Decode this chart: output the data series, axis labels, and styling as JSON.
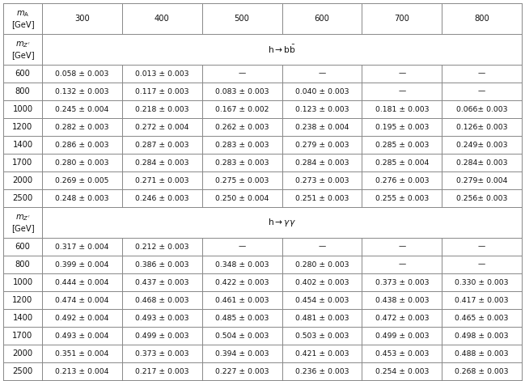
{
  "ma_cols": [
    "300",
    "400",
    "500",
    "600",
    "700",
    "800"
  ],
  "bb_rows": {
    "mz_vals": [
      "600",
      "800",
      "1000",
      "1200",
      "1400",
      "1700",
      "2000",
      "2500"
    ],
    "data": [
      [
        "0.058 ± 0.003",
        "0.013 ± 0.003",
        "—",
        "—",
        "—",
        "—"
      ],
      [
        "0.132 ± 0.003",
        "0.117 ± 0.003",
        "0.083 ± 0.003",
        "0.040 ± 0.003",
        "—",
        "—"
      ],
      [
        "0.245 ± 0.004",
        "0.218 ± 0.003",
        "0.167 ± 0.002",
        "0.123 ± 0.003",
        "0.181 ± 0.003",
        "0.066± 0.003"
      ],
      [
        "0.282 ± 0.003",
        "0.272 ± 0.004",
        "0.262 ± 0.003",
        "0.238 ± 0.004",
        "0.195 ± 0.003",
        "0.126± 0.003"
      ],
      [
        "0.286 ± 0.003",
        "0.287 ± 0.003",
        "0.283 ± 0.003",
        "0.279 ± 0.003",
        "0.285 ± 0.003",
        "0.249± 0.003"
      ],
      [
        "0.280 ± 0.003",
        "0.284 ± 0.003",
        "0.283 ± 0.003",
        "0.284 ± 0.003",
        "0.285 ± 0.004",
        "0.284± 0.003"
      ],
      [
        "0.269 ± 0.005",
        "0.271 ± 0.003",
        "0.275 ± 0.003",
        "0.273 ± 0.003",
        "0.276 ± 0.003",
        "0.279± 0.004"
      ],
      [
        "0.248 ± 0.003",
        "0.246 ± 0.003",
        "0.250 ± 0.004",
        "0.251 ± 0.003",
        "0.255 ± 0.003",
        "0.256± 0.003"
      ]
    ]
  },
  "gg_rows": {
    "mz_vals": [
      "600",
      "800",
      "1000",
      "1200",
      "1400",
      "1700",
      "2000",
      "2500"
    ],
    "data": [
      [
        "0.317 ± 0.004",
        "0.212 ± 0.003",
        "—",
        "—",
        "—",
        "—"
      ],
      [
        "0.399 ± 0.004",
        "0.386 ± 0.003",
        "0.348 ± 0.003",
        "0.280 ± 0.003",
        "—",
        "—"
      ],
      [
        "0.444 ± 0.004",
        "0.437 ± 0.003",
        "0.422 ± 0.003",
        "0.402 ± 0.003",
        "0.373 ± 0.003",
        "0.330 ± 0.003"
      ],
      [
        "0.474 ± 0.004",
        "0.468 ± 0.003",
        "0.461 ± 0.003",
        "0.454 ± 0.003",
        "0.438 ± 0.003",
        "0.417 ± 0.003"
      ],
      [
        "0.492 ± 0.004",
        "0.493 ± 0.003",
        "0.485 ± 0.003",
        "0.481 ± 0.003",
        "0.472 ± 0.003",
        "0.465 ± 0.003"
      ],
      [
        "0.493 ± 0.004",
        "0.499 ± 0.003",
        "0.504 ± 0.003",
        "0.503 ± 0.003",
        "0.499 ± 0.003",
        "0.498 ± 0.003"
      ],
      [
        "0.351 ± 0.004",
        "0.373 ± 0.003",
        "0.394 ± 0.003",
        "0.421 ± 0.003",
        "0.453 ± 0.003",
        "0.488 ± 0.003"
      ],
      [
        "0.213 ± 0.004",
        "0.217 ± 0.003",
        "0.227 ± 0.003",
        "0.236 ± 0.003",
        "0.254 ± 0.003",
        "0.268 ± 0.003"
      ]
    ]
  },
  "fontsize": 7.2,
  "line_color": "#888888",
  "text_color": "#111111",
  "bg_color": "#ffffff",
  "fig_width": 6.49,
  "fig_height": 4.71,
  "dpi": 100
}
